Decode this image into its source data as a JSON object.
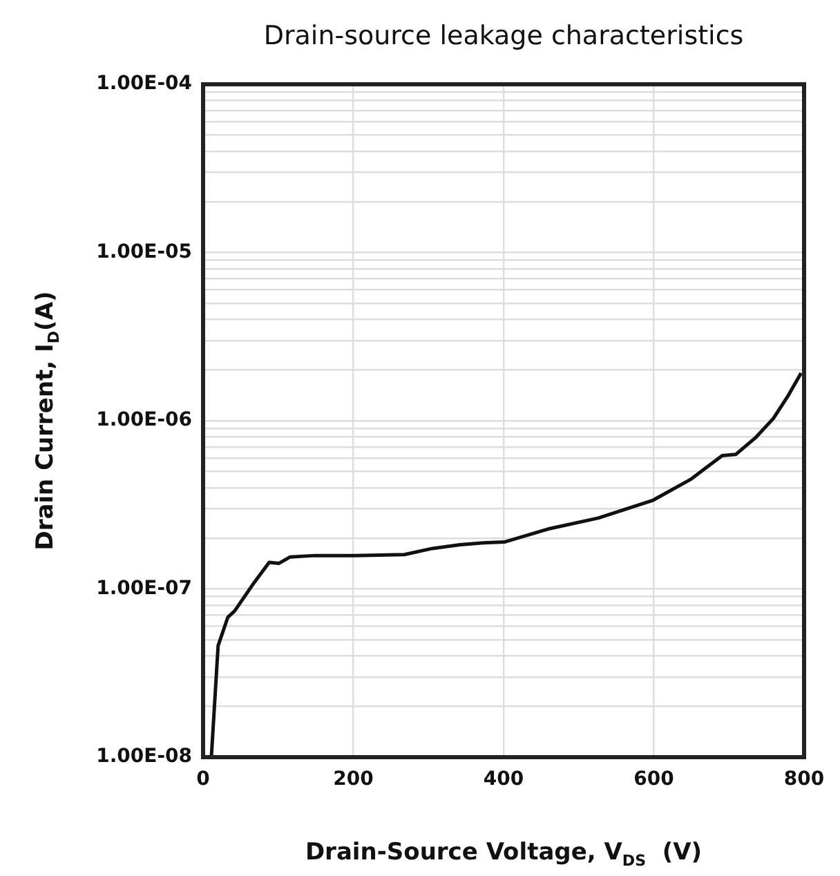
{
  "chart_data": {
    "type": "line",
    "title": "Drain-source leakage characteristics",
    "xlabel": "Drain-Source Voltage, V$_{DS}$  (V)",
    "ylabel": "Drain Current, I$_{D}$(A)",
    "x": [
      11,
      20,
      33,
      42,
      66,
      88,
      101,
      116,
      149,
      202,
      268,
      305,
      342,
      373,
      401,
      459,
      526,
      599,
      649,
      691,
      709,
      735,
      759,
      778,
      796
    ],
    "series": [
      {
        "color": "#111111",
        "values": [
          1e-08,
          4.6e-08,
          6.8e-08,
          7.4e-08,
          1.06e-07,
          1.44e-07,
          1.42e-07,
          1.55e-07,
          1.58e-07,
          1.58e-07,
          1.6e-07,
          1.74e-07,
          1.83e-07,
          1.88e-07,
          1.9e-07,
          2.27e-07,
          2.64e-07,
          3.37e-07,
          4.48e-07,
          6.2e-07,
          6.3e-07,
          7.9e-07,
          1.03e-06,
          1.39e-06,
          1.92e-06
        ]
      }
    ],
    "xlim": [
      0,
      800
    ],
    "xticks": [
      0,
      200,
      400,
      600,
      800
    ],
    "ylim": [
      1e-08,
      0.0001
    ],
    "yticks": [
      {
        "value": 1e-08,
        "label": "1.00E-08"
      },
      {
        "value": 2e-08,
        "label": null
      },
      {
        "value": 3e-08,
        "label": null
      },
      {
        "value": 4e-08,
        "label": null
      },
      {
        "value": 5e-08,
        "label": null
      },
      {
        "value": 6e-08,
        "label": null
      },
      {
        "value": 7e-08,
        "label": null
      },
      {
        "value": 8e-08,
        "label": null
      },
      {
        "value": 9e-08,
        "label": null
      },
      {
        "value": 1e-07,
        "label": "1.00E-07"
      },
      {
        "value": 2e-07,
        "label": null
      },
      {
        "value": 3e-07,
        "label": null
      },
      {
        "value": 4e-07,
        "label": null
      },
      {
        "value": 5e-07,
        "label": null
      },
      {
        "value": 6e-07,
        "label": null
      },
      {
        "value": 7e-07,
        "label": null
      },
      {
        "value": 8e-07,
        "label": null
      },
      {
        "value": 9e-07,
        "label": null
      },
      {
        "value": 1e-06,
        "label": "1.00E-06"
      },
      {
        "value": 2e-06,
        "label": null
      },
      {
        "value": 3e-06,
        "label": null
      },
      {
        "value": 4e-06,
        "label": null
      },
      {
        "value": 5e-06,
        "label": null
      },
      {
        "value": 6e-06,
        "label": null
      },
      {
        "value": 7e-06,
        "label": null
      },
      {
        "value": 8e-06,
        "label": null
      },
      {
        "value": 9e-06,
        "label": null
      },
      {
        "value": 1e-05,
        "label": "1.00E-05"
      },
      {
        "value": 2e-05,
        "label": null
      },
      {
        "value": 3e-05,
        "label": null
      },
      {
        "value": 4e-05,
        "label": null
      },
      {
        "value": 5e-05,
        "label": null
      },
      {
        "value": 6e-05,
        "label": null
      },
      {
        "value": 7e-05,
        "label": null
      },
      {
        "value": 8e-05,
        "label": null
      },
      {
        "value": 9e-05,
        "label": null
      },
      {
        "value": 0.0001,
        "label": "1.00E-04"
      }
    ],
    "log": "y",
    "grid": true,
    "legend": false,
    "marker": "none",
    "line_style": "solid"
  }
}
